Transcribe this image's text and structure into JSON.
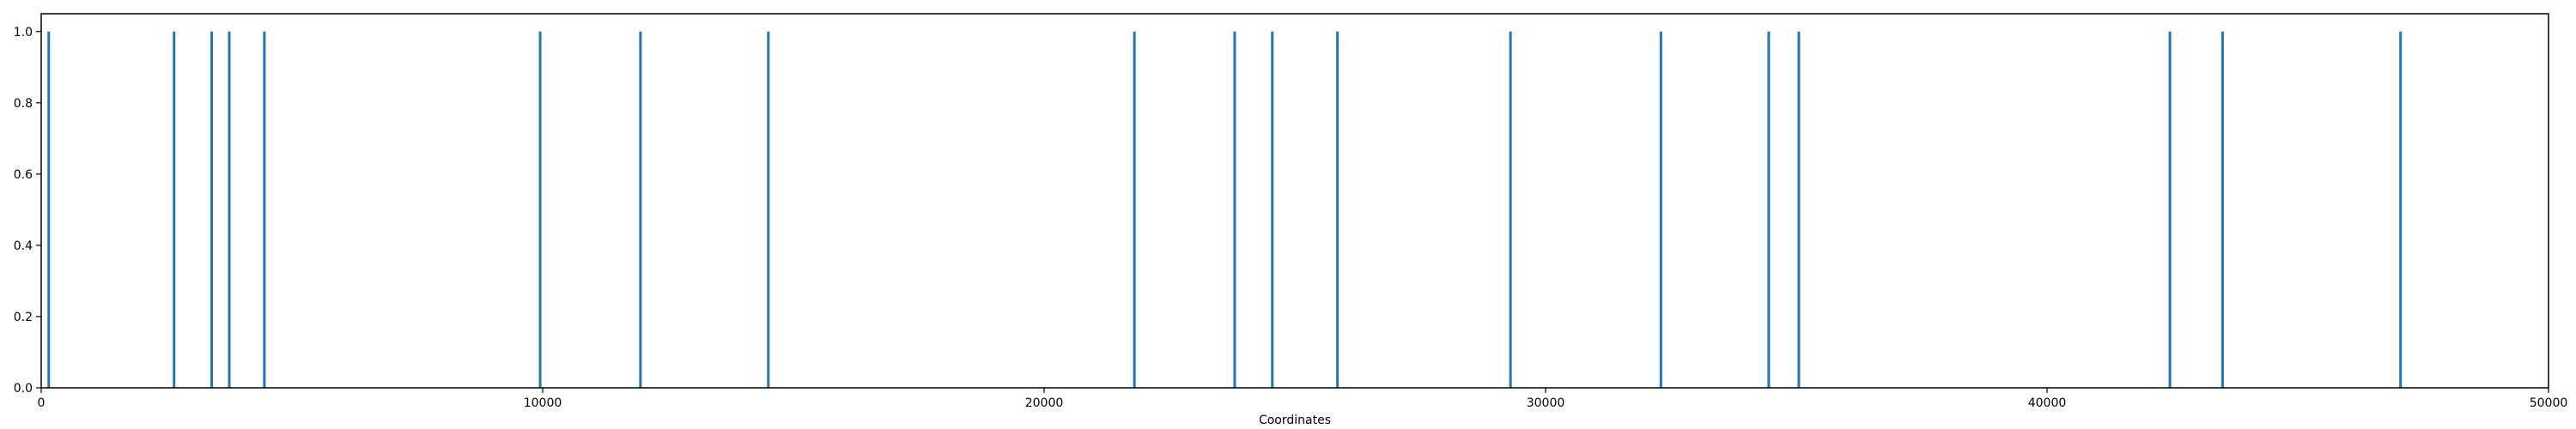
{
  "chart_data": {
    "type": "bar",
    "title": "",
    "xlabel": "Coordinates",
    "ylabel": "",
    "xlim": [
      0,
      50000
    ],
    "ylim": [
      0,
      1.05
    ],
    "grid": false,
    "bar_color": "#1f77b4",
    "x_ticks": [
      0,
      10000,
      20000,
      30000,
      40000,
      50000
    ],
    "y_ticks": [
      0.0,
      0.2,
      0.4,
      0.6,
      0.8,
      1.0
    ],
    "x_tick_labels": [
      "0",
      "10000",
      "20000",
      "30000",
      "40000",
      "50000"
    ],
    "y_tick_labels": [
      "0.0",
      "0.2",
      "0.4",
      "0.6",
      "0.8",
      "1.0"
    ],
    "x": [
      150,
      2650,
      3400,
      3750,
      4450,
      9950,
      11950,
      14500,
      21800,
      23800,
      24550,
      25850,
      29300,
      32300,
      34450,
      35050,
      42450,
      43500,
      47050
    ],
    "values": [
      1,
      1,
      1,
      1,
      1,
      1,
      1,
      1,
      1,
      1,
      1,
      1,
      1,
      1,
      1,
      1,
      1,
      1,
      1
    ]
  }
}
